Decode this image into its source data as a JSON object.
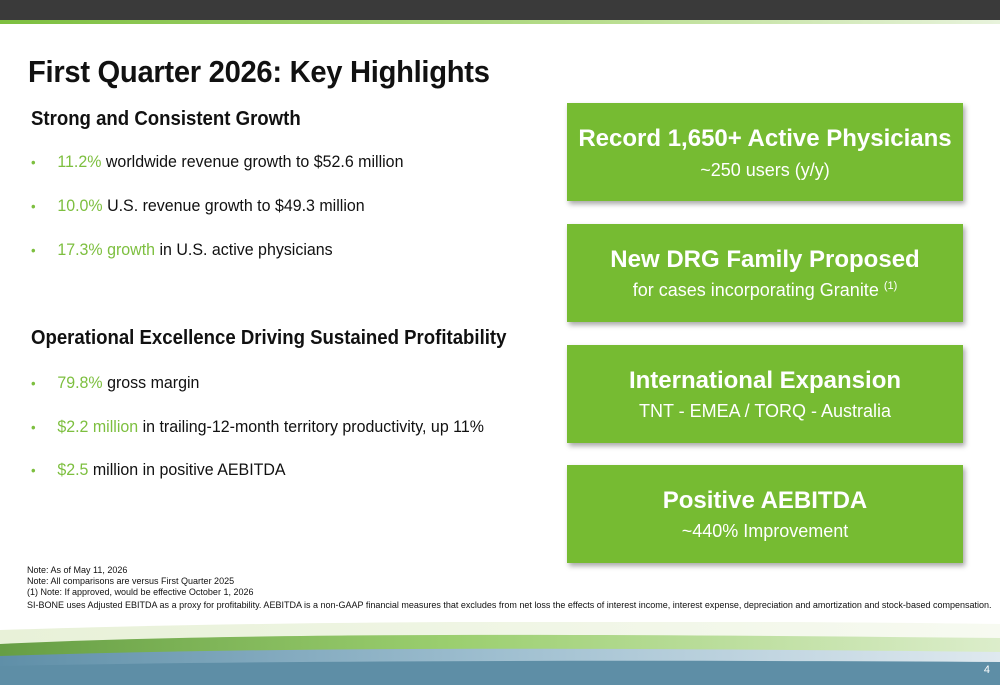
{
  "slide": {
    "title": "First Quarter 2026: Key Highlights",
    "page_number": "4"
  },
  "growth": {
    "heading": "Strong and Consistent Growth",
    "bullets": [
      {
        "highlight": "11.2%",
        "text": " worldwide revenue growth to $52.6 million"
      },
      {
        "highlight": "10.0%",
        "text": " U.S. revenue growth to $49.3 million"
      },
      {
        "highlight": "17.3% growth",
        "text": " in U.S. active physicians"
      }
    ]
  },
  "operations": {
    "heading": "Operational Excellence Driving Sustained Profitability",
    "bullets": [
      {
        "highlight": "79.8%",
        "text": " gross margin"
      },
      {
        "highlight": "$2.2 million",
        "text": " in trailing-12-month territory productivity, up 11%"
      },
      {
        "highlight": "$2.5",
        "text": " million in positive AEBITDA"
      }
    ]
  },
  "cards": [
    {
      "title": "Record 1,650+ Active Physicians",
      "subtitle": "~250 users (y/y)",
      "sup": ""
    },
    {
      "title": "New DRG Family Proposed",
      "subtitle": "for cases incorporating Granite ",
      "sup": "(1)"
    },
    {
      "title": "International Expansion",
      "subtitle": "TNT - EMEA / TORQ - Australia",
      "sup": ""
    },
    {
      "title": "Positive AEBITDA",
      "subtitle": "~440% Improvement",
      "sup": ""
    }
  ],
  "notes": [
    "Note: As of May 11, 2026",
    "Note: All comparisons are versus First Quarter 2025",
    "(1) Note: If approved, would be effective October 1, 2026",
    "SI-BONE uses Adjusted EBITDA as a proxy for profitability.  AEBITDA is a non-GAAP financial measures that excludes from net loss the effects of interest income, interest expense, depreciation and amortization and stock-based compensation."
  ],
  "colors": {
    "accent_green": "#76bb32",
    "highlight_green": "#7dbf3f",
    "top_bar": "#3a3a3a"
  }
}
